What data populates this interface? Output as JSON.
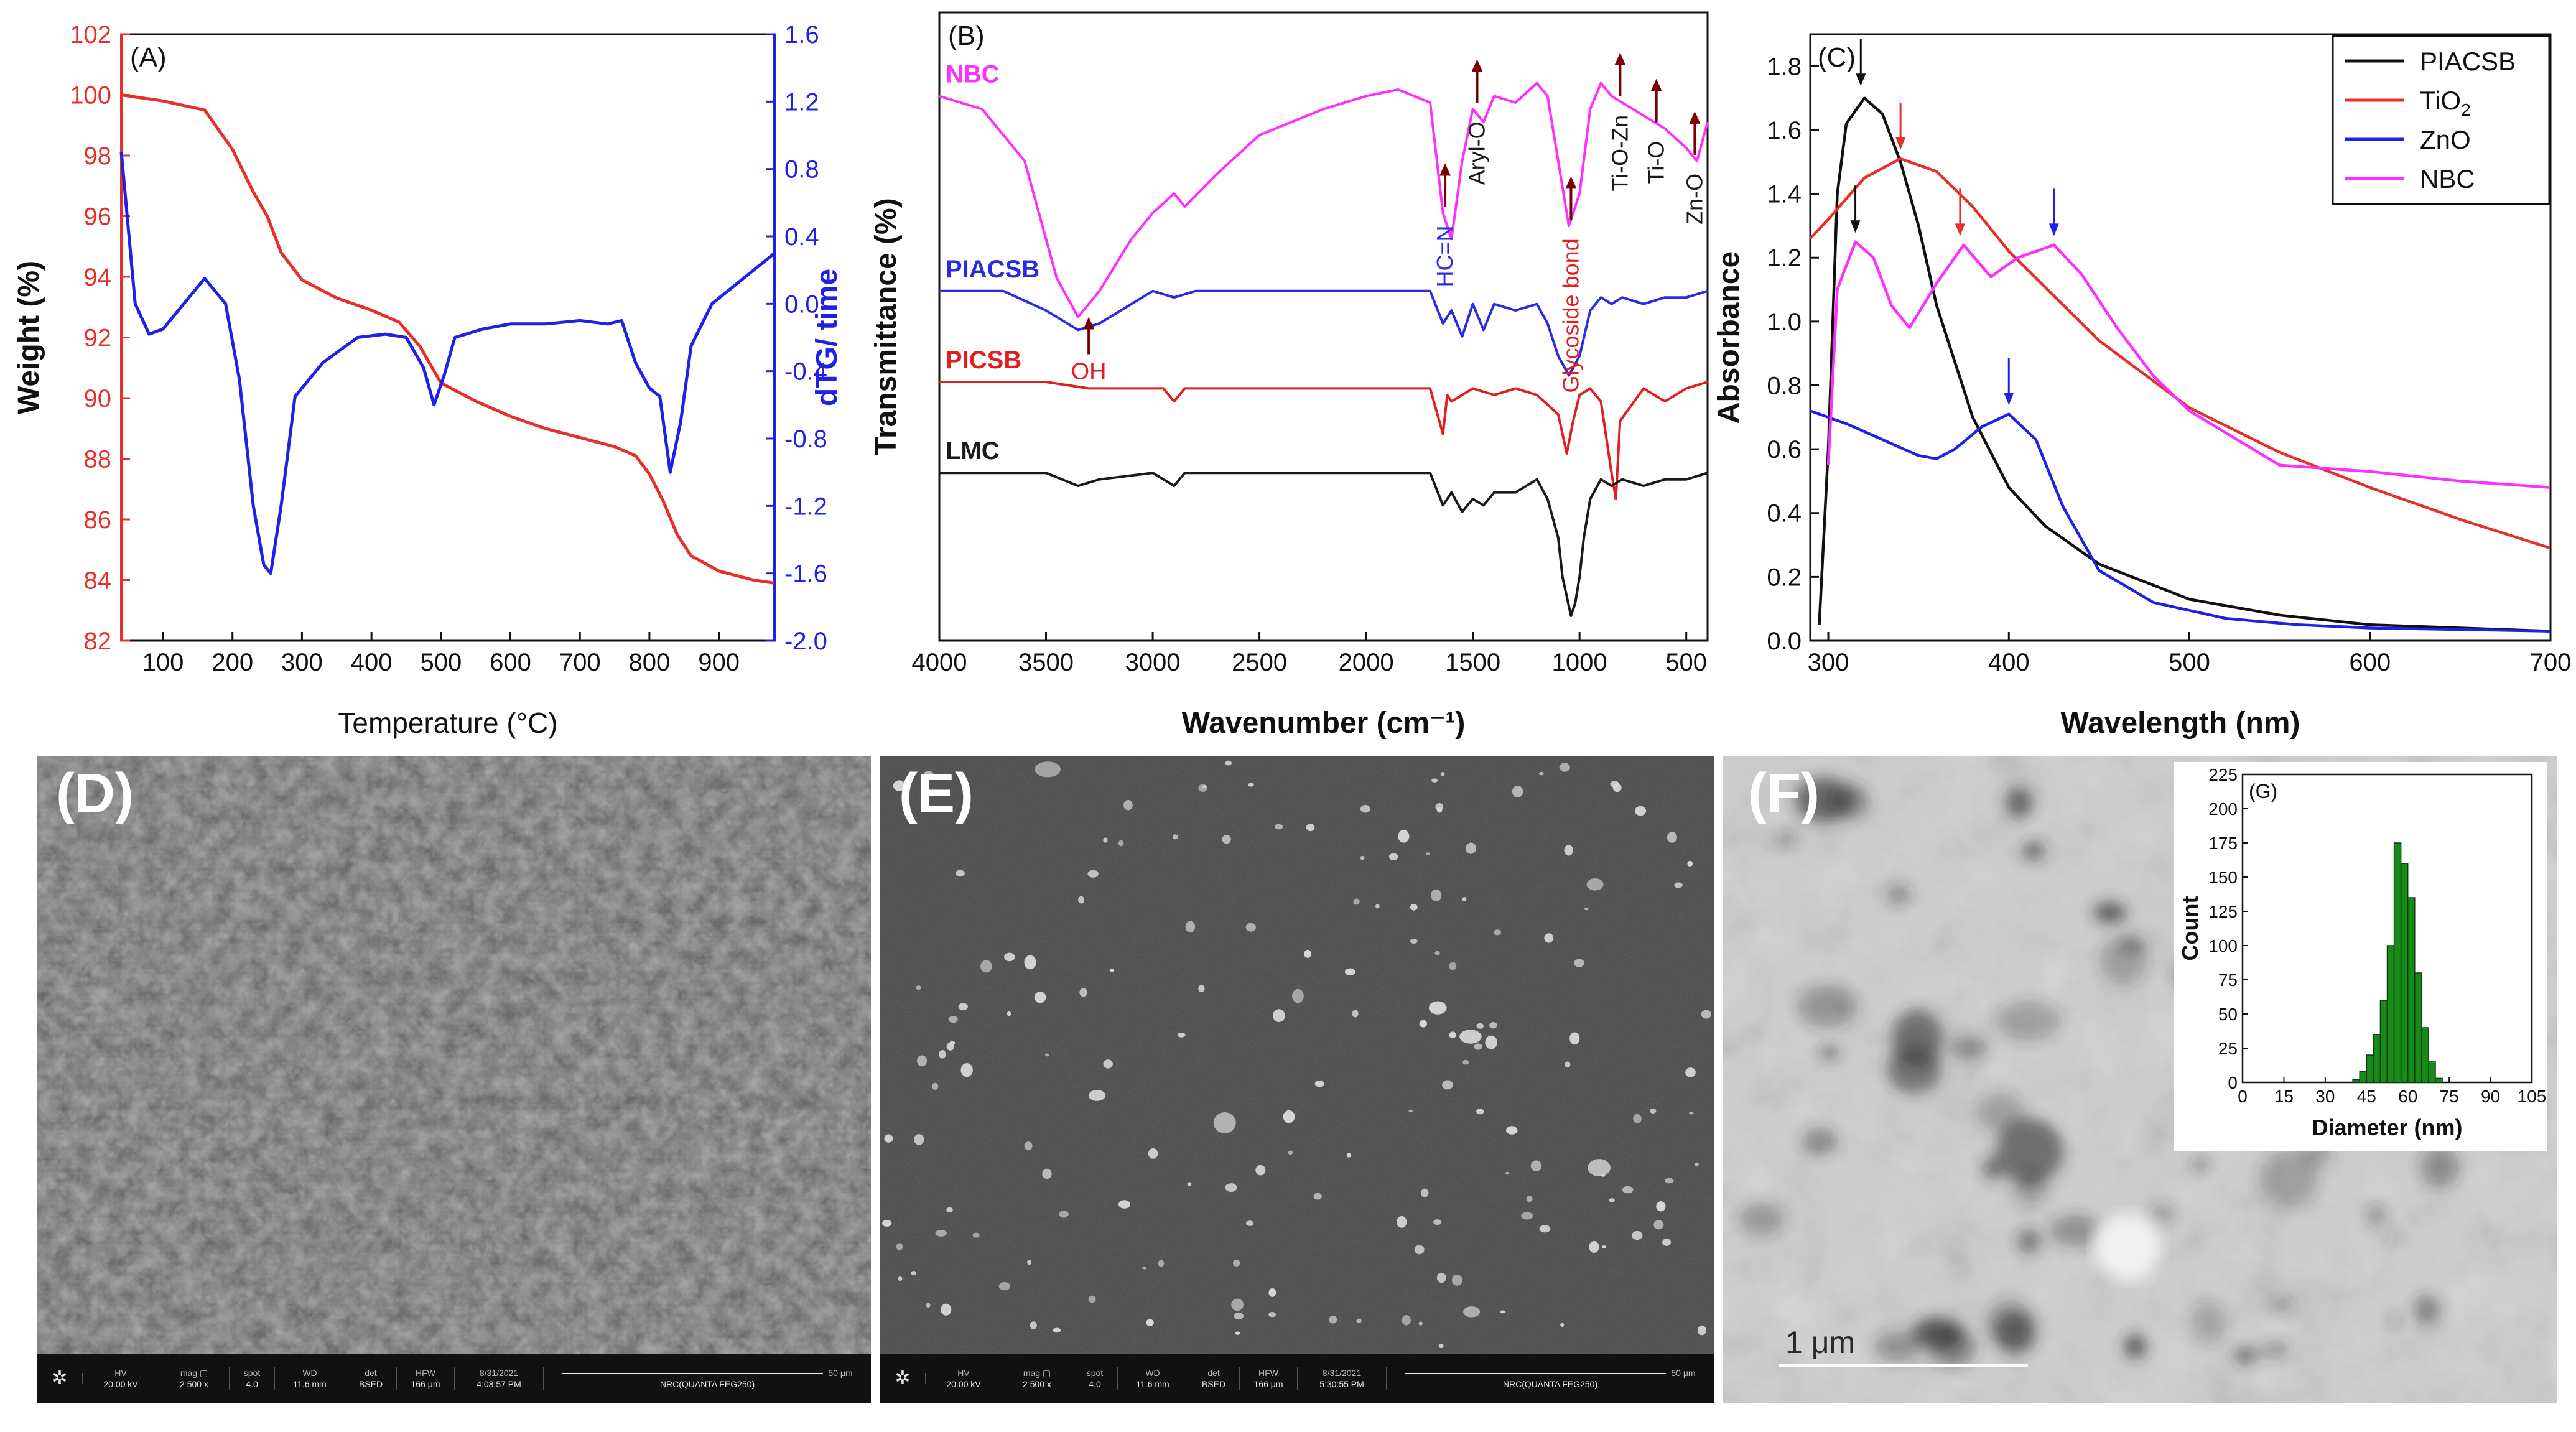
{
  "panels": {
    "A": {
      "label": "(A)"
    },
    "B": {
      "label": "(B)"
    },
    "C": {
      "label": "(C)"
    },
    "D": {
      "label": "(D)"
    },
    "E": {
      "label": "(E)"
    },
    "F": {
      "label": "(F)"
    },
    "G": {
      "label": "(G)"
    }
  },
  "chart_data": [
    {
      "id": "A",
      "type": "line",
      "xlabel": "Temperature (°C)",
      "ylabel": "Weight (%)",
      "y2label": "dTG/ time",
      "xlim": [
        40,
        980
      ],
      "ylim": [
        82,
        102
      ],
      "y2lim": [
        -2.0,
        1.6
      ],
      "xticks": [
        100,
        200,
        300,
        400,
        500,
        600,
        700,
        800,
        900
      ],
      "yticks": [
        82,
        84,
        86,
        88,
        90,
        92,
        94,
        96,
        98,
        100,
        102
      ],
      "y2ticks": [
        "-2.0",
        "-1.6",
        "-1.2",
        "-0.8",
        "-0.4",
        "0.0",
        "0.4",
        "0.8",
        "1.2",
        "1.6"
      ],
      "series": [
        {
          "axis": "left",
          "color": "#e8302a",
          "x": [
            40,
            100,
            160,
            200,
            230,
            250,
            270,
            300,
            350,
            400,
            440,
            470,
            500,
            550,
            600,
            650,
            700,
            750,
            780,
            800,
            820,
            840,
            860,
            900,
            950,
            980
          ],
          "values": [
            100,
            99.8,
            99.5,
            98.2,
            96.8,
            96.0,
            94.8,
            93.9,
            93.3,
            92.9,
            92.5,
            91.7,
            90.5,
            89.9,
            89.4,
            89.0,
            88.7,
            88.4,
            88.1,
            87.5,
            86.6,
            85.5,
            84.8,
            84.3,
            84.0,
            83.9
          ]
        },
        {
          "axis": "right",
          "color": "#2020e8",
          "x": [
            40,
            60,
            80,
            100,
            130,
            160,
            190,
            210,
            230,
            245,
            255,
            270,
            290,
            330,
            380,
            420,
            450,
            475,
            490,
            505,
            520,
            560,
            600,
            650,
            700,
            740,
            760,
            780,
            800,
            815,
            830,
            845,
            860,
            890,
            920,
            950,
            980
          ],
          "values": [
            0.9,
            0.0,
            -0.18,
            -0.15,
            0.0,
            0.15,
            0.0,
            -0.45,
            -1.2,
            -1.55,
            -1.6,
            -1.2,
            -0.55,
            -0.35,
            -0.2,
            -0.18,
            -0.2,
            -0.38,
            -0.6,
            -0.42,
            -0.2,
            -0.15,
            -0.12,
            -0.12,
            -0.1,
            -0.12,
            -0.1,
            -0.35,
            -0.5,
            -0.55,
            -1.0,
            -0.7,
            -0.25,
            0.0,
            0.1,
            0.2,
            0.3
          ]
        }
      ]
    },
    {
      "id": "B",
      "type": "line",
      "xlabel": "Wavenumber (cm⁻¹)",
      "ylabel": "Transmittance (%)",
      "xlim": [
        4000,
        400
      ],
      "xticks": [
        4000,
        3500,
        3000,
        2500,
        2000,
        1500,
        1000,
        500
      ],
      "series": [
        {
          "name": "NBC",
          "color": "#ff30ff",
          "x": [
            4000,
            3800,
            3600,
            3450,
            3350,
            3250,
            3100,
            3000,
            2900,
            2850,
            2700,
            2500,
            2200,
            2000,
            1850,
            1700,
            1640,
            1600,
            1550,
            1500,
            1450,
            1400,
            1300,
            1200,
            1150,
            1100,
            1050,
            1000,
            950,
            900,
            850,
            800,
            700,
            600,
            500,
            450,
            400
          ],
          "values": [
            80,
            78,
            70,
            52,
            46,
            50,
            58,
            62,
            65,
            63,
            68,
            74,
            78,
            80,
            81,
            79,
            62,
            58,
            70,
            78,
            76,
            80,
            79,
            82,
            80,
            70,
            60,
            65,
            78,
            82,
            80,
            79,
            77,
            75,
            72,
            70,
            76
          ]
        },
        {
          "name": "PIACSB",
          "color": "#2b2be0",
          "x": [
            4000,
            3700,
            3500,
            3350,
            3250,
            3100,
            3000,
            2900,
            2800,
            2600,
            2000,
            1700,
            1640,
            1600,
            1550,
            1500,
            1450,
            1400,
            1300,
            1200,
            1150,
            1100,
            1050,
            1000,
            950,
            900,
            850,
            800,
            700,
            600,
            500,
            400
          ],
          "values": [
            50,
            50,
            47,
            44,
            45,
            48,
            50,
            49,
            50,
            50,
            50,
            50,
            45,
            47,
            43,
            48,
            44,
            48,
            47,
            48,
            45,
            40,
            37,
            40,
            47,
            49,
            48,
            49,
            48,
            49,
            49,
            50
          ]
        },
        {
          "name": "PICSB",
          "color": "#e02020",
          "x": [
            4000,
            3500,
            3300,
            3100,
            2950,
            2900,
            2850,
            2700,
            2000,
            1700,
            1640,
            1620,
            1600,
            1500,
            1400,
            1300,
            1200,
            1100,
            1060,
            1030,
            1000,
            950,
            900,
            850,
            830,
            810,
            700,
            600,
            500,
            400
          ],
          "values": [
            36,
            36,
            35,
            35,
            35,
            33,
            35,
            35,
            35,
            35,
            28,
            34,
            33,
            35,
            34,
            35,
            34,
            31,
            25,
            30,
            34,
            35,
            33,
            22,
            18,
            30,
            35,
            33,
            35,
            36
          ]
        },
        {
          "name": "LMC",
          "color": "#1a1a1a",
          "x": [
            4000,
            3500,
            3350,
            3250,
            3000,
            2900,
            2850,
            2700,
            2000,
            1700,
            1640,
            1600,
            1550,
            1500,
            1450,
            1400,
            1300,
            1200,
            1150,
            1100,
            1080,
            1060,
            1040,
            1020,
            1000,
            980,
            950,
            900,
            850,
            800,
            700,
            600,
            500,
            400
          ],
          "values": [
            22,
            22,
            20,
            21,
            22,
            20,
            22,
            22,
            22,
            22,
            17,
            19,
            16,
            18,
            17,
            19,
            19,
            21,
            18,
            12,
            6,
            3,
            0,
            2,
            6,
            12,
            18,
            21,
            20,
            21,
            20,
            21,
            21,
            22
          ]
        }
      ],
      "annotations": [
        {
          "text": "OH",
          "color": "#e02020",
          "x": 3300
        },
        {
          "text": "HC=N",
          "color": "#2b2be0",
          "x": 1630
        },
        {
          "text": "Aryl-O",
          "color": "#1a1a1a",
          "x": 1480
        },
        {
          "text": "Glycoside bond",
          "color": "#e02020",
          "x": 1040
        },
        {
          "text": "Ti-O-Zn",
          "color": "#1a1a1a",
          "x": 810
        },
        {
          "text": "Ti-O",
          "color": "#1a1a1a",
          "x": 640
        },
        {
          "text": "Zn-O",
          "color": "#1a1a1a",
          "x": 460
        }
      ]
    },
    {
      "id": "C",
      "type": "line",
      "xlabel": "Wavelength (nm)",
      "ylabel": "Absorbance",
      "xlim": [
        290,
        700
      ],
      "ylim": [
        0.0,
        1.9
      ],
      "xticks": [
        300,
        400,
        500,
        600,
        700
      ],
      "yticks": [
        "0.0",
        "0.2",
        "0.4",
        "0.6",
        "0.8",
        "1.0",
        "1.2",
        "1.4",
        "1.6",
        "1.8"
      ],
      "legend_position": "top-right",
      "series": [
        {
          "name": "PIACSB",
          "color": "#111111",
          "x": [
            295,
            300,
            305,
            310,
            320,
            330,
            340,
            350,
            360,
            380,
            400,
            420,
            450,
            500,
            550,
            600,
            650,
            700
          ],
          "values": [
            0.05,
            0.6,
            1.4,
            1.62,
            1.7,
            1.65,
            1.5,
            1.3,
            1.05,
            0.7,
            0.48,
            0.36,
            0.24,
            0.13,
            0.08,
            0.05,
            0.04,
            0.03
          ]
        },
        {
          "name": "TiO2",
          "label_main": "TiO",
          "label_sub": "2",
          "color": "#e8302a",
          "x": [
            290,
            300,
            320,
            340,
            360,
            380,
            400,
            450,
            500,
            550,
            600,
            650,
            700
          ],
          "values": [
            1.26,
            1.32,
            1.45,
            1.51,
            1.47,
            1.36,
            1.22,
            0.94,
            0.73,
            0.59,
            0.48,
            0.38,
            0.29
          ]
        },
        {
          "name": "ZnO",
          "color": "#2020e8",
          "x": [
            290,
            310,
            330,
            350,
            360,
            370,
            385,
            400,
            415,
            430,
            450,
            480,
            520,
            560,
            600,
            650,
            700
          ],
          "values": [
            0.72,
            0.68,
            0.63,
            0.58,
            0.57,
            0.6,
            0.67,
            0.71,
            0.63,
            0.42,
            0.22,
            0.12,
            0.07,
            0.05,
            0.04,
            0.035,
            0.03
          ]
        },
        {
          "name": "NBC",
          "color": "#ff30ff",
          "x": [
            300,
            305,
            315,
            325,
            335,
            345,
            360,
            375,
            390,
            405,
            425,
            440,
            460,
            480,
            500,
            550,
            600,
            650,
            700
          ],
          "values": [
            0.55,
            1.1,
            1.25,
            1.2,
            1.05,
            0.98,
            1.12,
            1.24,
            1.14,
            1.2,
            1.24,
            1.15,
            0.98,
            0.83,
            0.72,
            0.55,
            0.53,
            0.5,
            0.48
          ]
        }
      ],
      "arrows": [
        {
          "x": 318,
          "y": 1.73,
          "color": "#111111"
        },
        {
          "x": 340,
          "y": 1.53,
          "color": "#e8302a"
        },
        {
          "x": 315,
          "y": 1.27,
          "color": "#111111"
        },
        {
          "x": 373,
          "y": 1.26,
          "color": "#e8302a"
        },
        {
          "x": 425,
          "y": 1.26,
          "color": "#2020e8"
        },
        {
          "x": 400,
          "y": 0.73,
          "color": "#2020e8"
        }
      ]
    },
    {
      "id": "G",
      "type": "bar",
      "xlabel": "Diameter (nm)",
      "ylabel": "Count",
      "xlim": [
        0,
        105
      ],
      "ylim": [
        0,
        225
      ],
      "xticks": [
        0,
        15,
        30,
        45,
        60,
        75,
        90,
        105
      ],
      "yticks": [
        0,
        25,
        50,
        75,
        100,
        125,
        150,
        175,
        200,
        225
      ],
      "bar_width": 2.5,
      "color": "#178a17",
      "x": [
        40,
        42.5,
        45,
        47.5,
        50,
        52.5,
        55,
        57.5,
        60,
        62.5,
        65,
        67.5,
        70
      ],
      "values": [
        2,
        8,
        20,
        35,
        60,
        100,
        175,
        160,
        135,
        80,
        40,
        15,
        3
      ]
    }
  ],
  "micrographs": {
    "D": {
      "hv_label": "HV",
      "hv": "20.00 kV",
      "mag_label": "mag ▢",
      "mag": "2 500 x",
      "spot_label": "spot",
      "spot": "4.0",
      "wd_label": "WD",
      "wd": "11.6 mm",
      "det_label": "det",
      "det": "BSED",
      "hfw_label": "HFW",
      "hfw": "166 μm",
      "date": "8/31/2021",
      "time": "4:08:57 PM",
      "scale": "50 μm",
      "instrument": "NRC(QUANTA FEG250)"
    },
    "E": {
      "hv_label": "HV",
      "hv": "20.00 kV",
      "mag_label": "mag ▢",
      "mag": "2 500 x",
      "spot_label": "spot",
      "spot": "4.0",
      "wd_label": "WD",
      "wd": "11.6 mm",
      "det_label": "det",
      "det": "BSED",
      "hfw_label": "HFW",
      "hfw": "166 μm",
      "date": "8/31/2021",
      "time": "5:30:55 PM",
      "scale": "50 μm",
      "instrument": "NRC(QUANTA FEG250)"
    },
    "F": {
      "scale": "1 μm"
    }
  }
}
